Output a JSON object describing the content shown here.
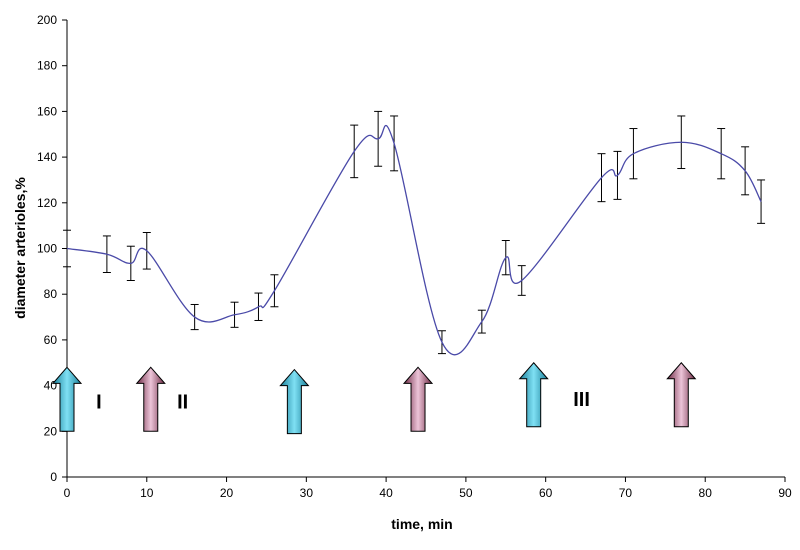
{
  "chart_data": {
    "type": "line",
    "title": "",
    "xlabel": "time, min",
    "ylabel": "diameter arterioles,%",
    "xlim": [
      0,
      90
    ],
    "ylim": [
      0,
      200
    ],
    "xticks": [
      0,
      10,
      20,
      30,
      40,
      50,
      60,
      70,
      80,
      90
    ],
    "yticks": [
      0,
      20,
      40,
      60,
      80,
      100,
      120,
      140,
      160,
      180,
      200
    ],
    "grid": false,
    "legend": "none",
    "series": [
      {
        "color": "#4a4aa8",
        "points": [
          {
            "x": 0,
            "y": 100,
            "err": 8
          },
          {
            "x": 5,
            "y": 97.5,
            "err": 8
          },
          {
            "x": 8,
            "y": 93.5,
            "err": 7.5
          },
          {
            "x": 10,
            "y": 99,
            "err": 8
          },
          {
            "x": 16,
            "y": 70,
            "err": 5.5
          },
          {
            "x": 21,
            "y": 71,
            "err": 5.5
          },
          {
            "x": 24,
            "y": 74.5,
            "err": 6
          },
          {
            "x": 26,
            "y": 81.5,
            "err": 7
          },
          {
            "x": 36,
            "y": 142.5,
            "err": 11.5
          },
          {
            "x": 39,
            "y": 148,
            "err": 12
          },
          {
            "x": 41,
            "y": 146,
            "err": 12
          },
          {
            "x": 47,
            "y": 59,
            "err": 5
          },
          {
            "x": 52,
            "y": 68,
            "err": 5
          },
          {
            "x": 55,
            "y": 96,
            "err": 7.5
          },
          {
            "x": 57,
            "y": 86,
            "err": 6.5
          },
          {
            "x": 67,
            "y": 131,
            "err": 10.5
          },
          {
            "x": 69,
            "y": 132,
            "err": 10.5
          },
          {
            "x": 71,
            "y": 141.5,
            "err": 11
          },
          {
            "x": 77,
            "y": 146.5,
            "err": 11.5
          },
          {
            "x": 82,
            "y": 141.5,
            "err": 11
          },
          {
            "x": 85,
            "y": 134,
            "err": 10.5
          },
          {
            "x": 87,
            "y": 120.5,
            "err": 9.5
          }
        ]
      }
    ],
    "annotations": {
      "arrows": [
        {
          "x": 0,
          "y_base": 20,
          "y_tip": 48,
          "kind": "teal"
        },
        {
          "x": 10.5,
          "y_base": 20,
          "y_tip": 48,
          "kind": "plum"
        },
        {
          "x": 28.5,
          "y_base": 19,
          "y_tip": 47,
          "kind": "teal"
        },
        {
          "x": 44,
          "y_base": 20,
          "y_tip": 48,
          "kind": "plum"
        },
        {
          "x": 58.5,
          "y_base": 22,
          "y_tip": 50,
          "kind": "teal"
        },
        {
          "x": 77,
          "y_base": 22,
          "y_tip": 50,
          "kind": "plum"
        }
      ],
      "labels": [
        {
          "text": "I",
          "x": 4,
          "y": 30
        },
        {
          "text": "II",
          "x": 14.5,
          "y": 30
        },
        {
          "text": "III",
          "x": 64.5,
          "y": 31
        }
      ]
    },
    "colors": {
      "line": "#4a4aa8",
      "teal_top": "#6fd6ee",
      "teal_dark": "#1a7f99",
      "plum_top": "#e6b8cf",
      "plum_dark": "#6e2a44"
    }
  }
}
